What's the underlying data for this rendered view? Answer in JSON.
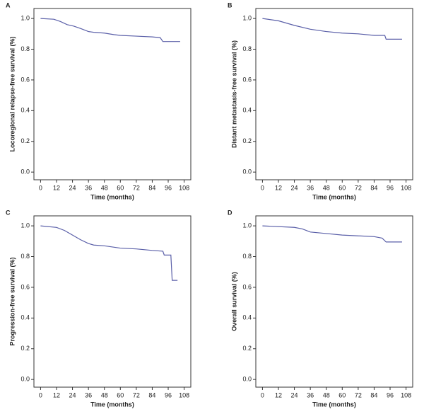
{
  "chart_data": [
    {
      "type": "line",
      "panel": "A",
      "ylabel": "Locoregional relapse-free survival (%)",
      "xlabel": "Time (months)",
      "x": [
        0,
        10,
        15,
        20,
        25,
        30,
        36,
        40,
        48,
        55,
        60,
        72,
        84,
        90,
        92,
        105
      ],
      "series": [
        {
          "color": "#5a5fa8",
          "values": [
            1.0,
            0.995,
            0.98,
            0.96,
            0.95,
            0.935,
            0.915,
            0.91,
            0.905,
            0.895,
            0.89,
            0.885,
            0.88,
            0.875,
            0.85,
            0.85
          ]
        }
      ],
      "xlim": [
        -5,
        113
      ],
      "ylim": [
        -0.05,
        1.065
      ],
      "xticks": [
        0,
        12,
        24,
        36,
        48,
        60,
        72,
        84,
        96,
        108
      ],
      "yticks": [
        {
          "value": 0,
          "label": "0.0"
        },
        {
          "value": 0.2,
          "label": "0.2"
        },
        {
          "value": 0.4,
          "label": "0.4"
        },
        {
          "value": 0.6,
          "label": "0.6"
        },
        {
          "value": 0.8,
          "label": "0.8"
        },
        {
          "value": 1,
          "label": "1.0"
        }
      ]
    },
    {
      "type": "line",
      "panel": "B",
      "ylabel": "Distant metastasis-free survival (%)",
      "xlabel": "Time (months)",
      "x": [
        0,
        12,
        24,
        36,
        48,
        60,
        72,
        84,
        92,
        93,
        105
      ],
      "series": [
        {
          "color": "#5a5fa8",
          "values": [
            1.0,
            0.985,
            0.955,
            0.93,
            0.915,
            0.905,
            0.9,
            0.89,
            0.89,
            0.865,
            0.865
          ]
        }
      ],
      "xlim": [
        -5,
        113
      ],
      "ylim": [
        -0.05,
        1.065
      ],
      "xticks": [
        0,
        12,
        24,
        36,
        48,
        60,
        72,
        84,
        96,
        108
      ],
      "yticks": [
        {
          "value": 0,
          "label": "0.0"
        },
        {
          "value": 0.2,
          "label": "0.2"
        },
        {
          "value": 0.4,
          "label": "0.4"
        },
        {
          "value": 0.6,
          "label": "0.6"
        },
        {
          "value": 0.8,
          "label": "0.8"
        },
        {
          "value": 1,
          "label": "1.0"
        }
      ]
    },
    {
      "type": "line",
      "panel": "C",
      "ylabel": "Progression-free survival (%)",
      "xlabel": "Time (months)",
      "x": [
        0,
        12,
        18,
        24,
        30,
        36,
        40,
        48,
        60,
        72,
        84,
        92,
        93,
        98,
        99,
        103
      ],
      "series": [
        {
          "color": "#5a5fa8",
          "values": [
            1.0,
            0.99,
            0.97,
            0.94,
            0.91,
            0.885,
            0.875,
            0.87,
            0.855,
            0.85,
            0.84,
            0.835,
            0.81,
            0.81,
            0.645,
            0.645
          ]
        }
      ],
      "xlim": [
        -5,
        113
      ],
      "ylim": [
        -0.05,
        1.065
      ],
      "xticks": [
        0,
        12,
        24,
        36,
        48,
        60,
        72,
        84,
        96,
        108
      ],
      "yticks": [
        {
          "value": 0,
          "label": "0.0"
        },
        {
          "value": 0.2,
          "label": "0.2"
        },
        {
          "value": 0.4,
          "label": "0.4"
        },
        {
          "value": 0.6,
          "label": "0.6"
        },
        {
          "value": 0.8,
          "label": "0.8"
        },
        {
          "value": 1,
          "label": "1.0"
        }
      ]
    },
    {
      "type": "line",
      "panel": "D",
      "ylabel": "Overall survival (%)",
      "xlabel": "Time (months)",
      "x": [
        0,
        24,
        30,
        36,
        48,
        60,
        72,
        84,
        90,
        93,
        105
      ],
      "series": [
        {
          "color": "#5a5fa8",
          "values": [
            1.0,
            0.99,
            0.98,
            0.96,
            0.95,
            0.94,
            0.935,
            0.93,
            0.92,
            0.895,
            0.895
          ]
        }
      ],
      "xlim": [
        -5,
        113
      ],
      "ylim": [
        -0.05,
        1.065
      ],
      "xticks": [
        0,
        12,
        24,
        36,
        48,
        60,
        72,
        84,
        96,
        108
      ],
      "yticks": [
        {
          "value": 0,
          "label": "0.0"
        },
        {
          "value": 0.2,
          "label": "0.2"
        },
        {
          "value": 0.4,
          "label": "0.4"
        },
        {
          "value": 0.6,
          "label": "0.6"
        },
        {
          "value": 0.8,
          "label": "0.8"
        },
        {
          "value": 1,
          "label": "1.0"
        }
      ]
    }
  ]
}
